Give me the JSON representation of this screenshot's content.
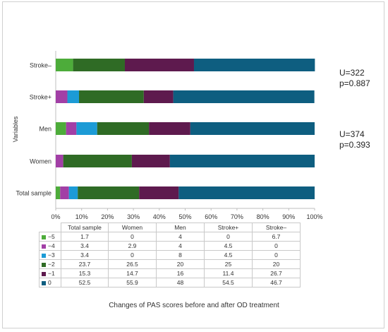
{
  "chart_data": {
    "type": "bar",
    "orientation": "horizontal",
    "stacked": true,
    "percent_stacked": true,
    "categories": [
      "Total sample",
      "Women",
      "Men",
      "Stroke+",
      "Stroke–"
    ],
    "series": [
      {
        "name": "−5",
        "color": "#4dac3a",
        "values": [
          1.7,
          0,
          4,
          0,
          6.7
        ]
      },
      {
        "name": "−4",
        "color": "#a23fa6",
        "values": [
          3.4,
          2.9,
          4,
          4.5,
          0
        ]
      },
      {
        "name": "−3",
        "color": "#1c9bd6",
        "values": [
          3.4,
          0,
          8,
          4.5,
          0
        ]
      },
      {
        "name": "−2",
        "color": "#2f6b25",
        "values": [
          23.7,
          26.5,
          20,
          25,
          20
        ]
      },
      {
        "name": "−1",
        "color": "#5e1a4e",
        "values": [
          15.3,
          14.7,
          16,
          11.4,
          26.7
        ]
      },
      {
        "name": "0",
        "color": "#0e5e80",
        "values": [
          52.5,
          55.9,
          48,
          54.5,
          46.7
        ]
      }
    ],
    "xlim": [
      0,
      100
    ],
    "xticks": [
      "0%",
      "10%",
      "20%",
      "30%",
      "40%",
      "50%",
      "60%",
      "70%",
      "80%",
      "90%",
      "100%"
    ],
    "ylabel": "Variables",
    "xlabel": "Changes of PAS scores before and after OD treatment",
    "grid": false,
    "legend": "data table below chart",
    "table_headers": [
      "Total sample",
      "Women",
      "Men",
      "Stroke+",
      "Stroke–"
    ],
    "table_rows": [
      {
        "label": "−5",
        "cells": [
          "1.7",
          "0",
          "4",
          "0",
          "6.7"
        ]
      },
      {
        "label": "−4",
        "cells": [
          "3.4",
          "2.9",
          "4",
          "4.5",
          "0"
        ]
      },
      {
        "label": "−3",
        "cells": [
          "3.4",
          "0",
          "8",
          "4.5",
          "0"
        ]
      },
      {
        "label": "−2",
        "cells": [
          "23.7",
          "26.5",
          "20",
          "25",
          "20"
        ]
      },
      {
        "label": "−1",
        "cells": [
          "15.3",
          "14.7",
          "16",
          "11.4",
          "26.7"
        ]
      },
      {
        "label": "0",
        "cells": [
          "52.5",
          "55.9",
          "48",
          "54.5",
          "46.7"
        ]
      }
    ],
    "annotations": [
      {
        "line1": "U=322",
        "line2": "p=0.887"
      },
      {
        "line1": "U=374",
        "line2": "p=0.393"
      }
    ]
  }
}
